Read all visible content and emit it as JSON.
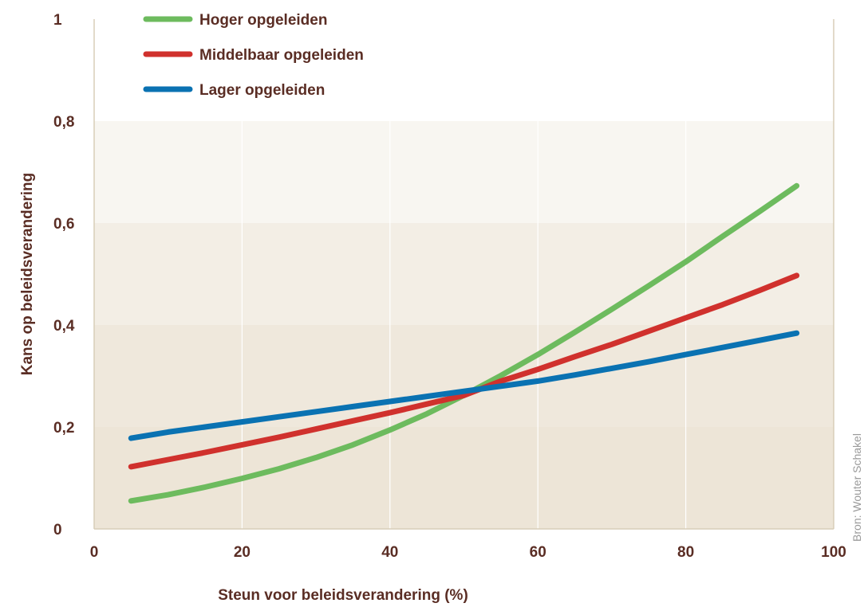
{
  "chart_data": {
    "type": "line",
    "xlabel": "Steun voor beleidsverandering (%)",
    "ylabel": "Kans op beleidsverandering",
    "xlim": [
      0,
      100
    ],
    "ylim": [
      0,
      1
    ],
    "x_ticks": [
      0,
      20,
      40,
      60,
      80,
      100
    ],
    "y_ticks": [
      0,
      0.2,
      0.4,
      0.6,
      0.8,
      1
    ],
    "x_tick_labels": [
      "0",
      "20",
      "40",
      "60",
      "80",
      "100"
    ],
    "y_tick_labels": [
      "0",
      "0,2",
      "0,4",
      "0,6",
      "0,8",
      "1"
    ],
    "background_bands": [
      {
        "from": 0,
        "to": 0.2,
        "color": "#ede5d7"
      },
      {
        "from": 0.2,
        "to": 0.4,
        "color": "#efe8dc"
      },
      {
        "from": 0.4,
        "to": 0.6,
        "color": "#f3eee5"
      },
      {
        "from": 0.6,
        "to": 0.8,
        "color": "#f8f6f1"
      }
    ],
    "grid": "vertical",
    "legend_position": "top-left",
    "x": [
      5,
      10,
      15,
      20,
      25,
      30,
      35,
      40,
      45,
      50,
      55,
      60,
      65,
      70,
      75,
      80,
      85,
      90,
      95
    ],
    "series": [
      {
        "name": "Hoger opgeleiden",
        "color": "#6dbb5e",
        "values": [
          0.055,
          0.067,
          0.082,
          0.099,
          0.118,
          0.14,
          0.165,
          0.194,
          0.226,
          0.262,
          0.301,
          0.342,
          0.386,
          0.431,
          0.477,
          0.524,
          0.574,
          0.623,
          0.673
        ]
      },
      {
        "name": "Middelbaar opgeleiden",
        "color": "#d0312d",
        "values": [
          0.122,
          0.136,
          0.15,
          0.165,
          0.18,
          0.196,
          0.212,
          0.228,
          0.245,
          0.262,
          0.29,
          0.313,
          0.338,
          0.362,
          0.388,
          0.414,
          0.44,
          0.468,
          0.497
        ]
      },
      {
        "name": "Lager opgeleiden",
        "color": "#0a72b2",
        "values": [
          0.178,
          0.19,
          0.2,
          0.21,
          0.22,
          0.23,
          0.24,
          0.25,
          0.26,
          0.27,
          0.28,
          0.29,
          0.302,
          0.315,
          0.328,
          0.342,
          0.356,
          0.37,
          0.384
        ]
      }
    ]
  },
  "source": "Bron: Wouter Schakel",
  "colors": {
    "text": "#5a2d24",
    "axis": "#d8cdb8",
    "grid": "#ffffff"
  }
}
